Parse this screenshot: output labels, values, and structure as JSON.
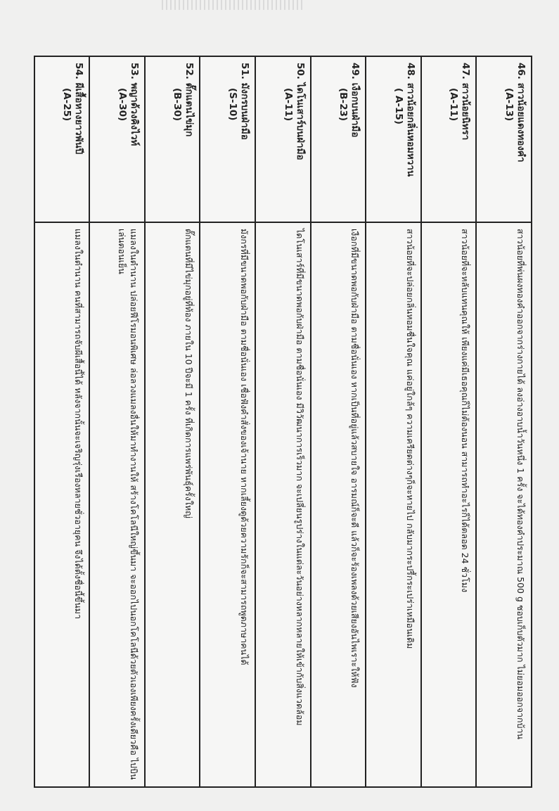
{
  "table": {
    "rows": [
      {
        "number": "46.",
        "name": "สาวน้อยแดงทองคำ",
        "code": "(A-13)",
        "description": "สาวน้อยที่พ่นผงทองคำออกจากร่างกายได้  ลงอ่างอาบน้ำวันหนึ่ง 1 ครั้ง จะได้ทองคำประมาณ 500  g  ชอบเก็บตัวมาก ไม่ยอมออกจากบ้าน"
      },
      {
        "number": "47.",
        "name": "สาวน้อยนิทรา",
        "code": "(A-11)",
        "description": "สาวน้อยที่จะหลับแทนคุณให้ เพียงแค่มีเธอคุณก็ไม่ต้องนอน สามารถทำอะไรก็ได้ตลอด 24 ชั่วโมง"
      },
      {
        "number": "48.",
        "name": "สาวน้อยกลิ่นหอมหวาน",
        "code": "( A-15)",
        "description": "สาวน้อยที่จะปล่อยกลิ่นหอมชื่นใจคุณ แค่อยู่ใกล้ๆ ความเครียดต่างๆก็จะหายไป กลับมากระปรี้กระเปร่าเหมือนเดิม"
      },
      {
        "number": "49.",
        "name": "เงือกบนฝ่ามือ",
        "code": "(B-23)",
        "description": "เงือกที่มีขนาดพอกับฝ่ามือ ตามชื่อนั่นเอง  หากเป็นที่อยู่แล้วสบายใจ อารมณ์ก็จะดี แล้วก็จะร้องเพลงด้วยเสียงอันไพเราะให้ฟัง"
      },
      {
        "number": "50.",
        "name": "ไดโนเสาร์บนฝ่ามือ",
        "code": "(A-11)",
        "description": "ไดโนเสาร์ที่มีขนาดพอกับฝ่ามือ ตามชื่อนั่นเอง  มีวิวัฒนาการเร็วมาก  จะเปลี่ยนรูปร่างในแต่ละวันอย่างหลากหลายให้เข้ากับสิ่งแวดล้อม"
      },
      {
        "number": "51.",
        "name": "มังกรบนฝ่ามือ",
        "code": "(S-10)",
        "description": "มังกรที่มีขนาดพอกับฝ่ามือ ตามชื่อนั่นเอง เชื่อฟังคำสั่งของเจ้านาย หากเลี้ยงดูด้วยความรักก็จะสามารถพูดภาษาคนได้"
      },
      {
        "number": "52.",
        "name": "ตั๊กแตนไข่มุก",
        "code": "(B-30)",
        "description": "ตั๊กแตนที่มีไข่มุกอยู่ที่ท้อง   ภายใน 10 ปีจะมี 1 ครั้ง ที่เกิดการแพร่พันธุ์ครั้งใหญ่"
      },
      {
        "number": "53.",
        "name": "พญาด้วงคิงไวท์",
        "code": "(A-30)",
        "description": "แมลงในตำนาน  ปล่อยฟีโรมอนพิเศษ ล่อลวงแมลงอื่นให้มาทำงานให้  สร้างโคโลนีใหญ่ขึ้นมา   จะออกไปนอกโคโลนีด้วยตัวเองเพียงครั้งเดียวคือ ไปบินเล่นตอนเย็น"
      },
      {
        "number": "54.",
        "name": "ผีเสื้อหางยาวพันปี",
        "code": "(A-25)",
        "description": "แมลงในตำนาน คนที่สามารถจับผีเสื้อนี้ได้  หลังจากนั้นจะเจริญรุ่งเรืองหลายชั่วอายุคน จึงได้ตั้งชื่อนี้ขึ้นมา"
      }
    ]
  }
}
